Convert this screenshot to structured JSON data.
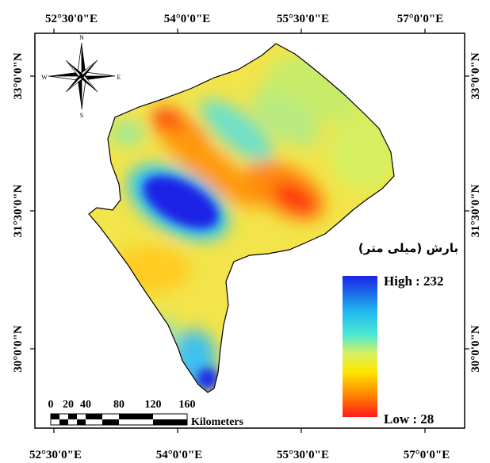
{
  "map": {
    "top_ticks": [
      "52°30'0\"E",
      "54°0'0\"E",
      "55°30'0\"E",
      "57°0'0\"E"
    ],
    "bottom_ticks": [
      "52°30'0\"E",
      "54°0'0\"E",
      "55°30'0\"E",
      "57°0'0\"E"
    ],
    "left_ticks": [
      "33°0'0\"N",
      "31°30'0\"N",
      "30°0'0\"N"
    ],
    "right_ticks": [
      "33°0'0\"N",
      "31°30'0\"N",
      "30°0'0\"N"
    ]
  },
  "legend": {
    "title": "بارش (میلی متر)",
    "high_label": "High : 232",
    "low_label": "Low : 28",
    "high_value": 232,
    "low_value": 28,
    "high_color": "#1a22e6",
    "low_color": "#ff1a1a"
  },
  "scale_bar": {
    "labels": [
      "0",
      "20",
      "40",
      "80",
      "120",
      "160"
    ],
    "unit": "Kilometers"
  },
  "compass": {
    "n": "N",
    "s": "S",
    "e": "E",
    "w": "W"
  }
}
